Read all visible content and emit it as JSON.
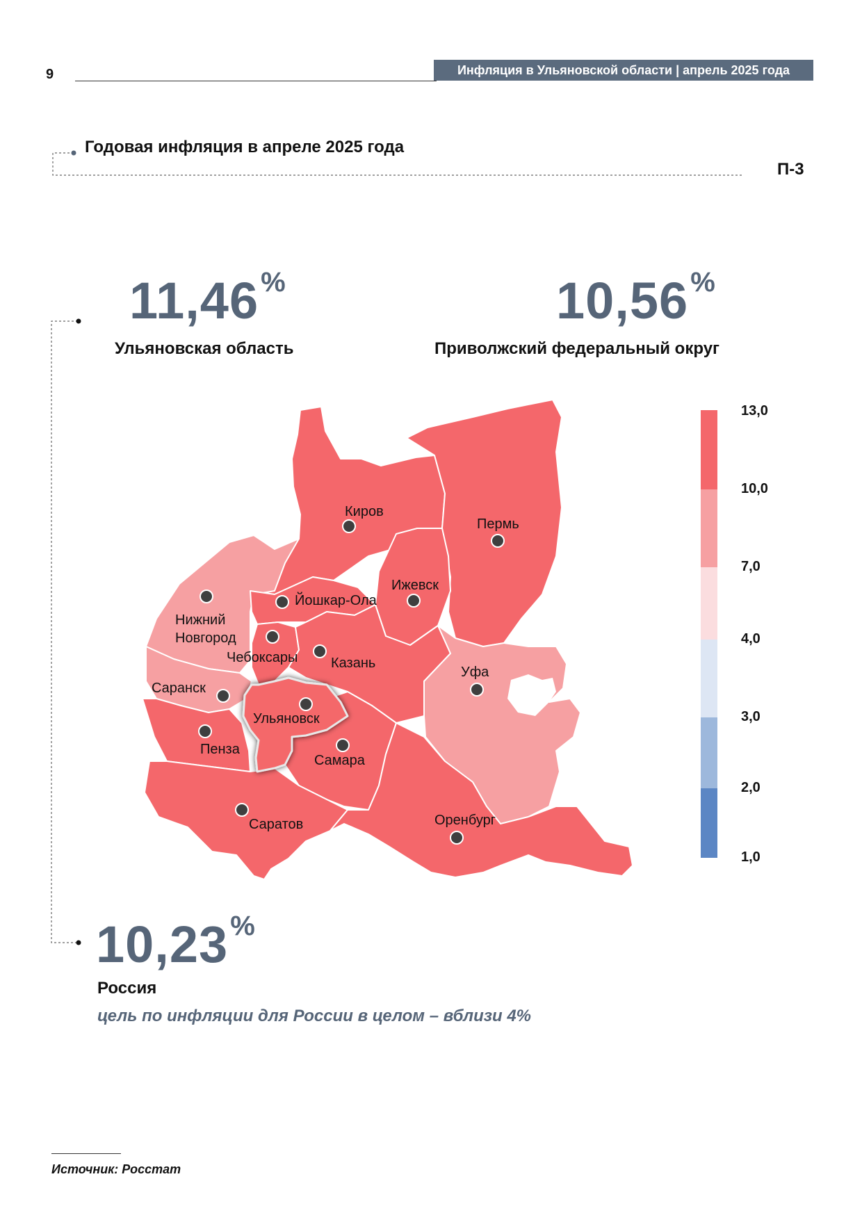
{
  "header": {
    "page_number": "9",
    "running_title": "Инфляция в Ульяновской области | апрель 2025 года"
  },
  "section": {
    "title": "Годовая инфляция в апреле 2025 года",
    "code": "П-3"
  },
  "indicators": {
    "ulyanovsk": {
      "value": "11,46",
      "unit": "%",
      "label": "Ульяновская область"
    },
    "pfo": {
      "value": "10,56",
      "unit": "%",
      "label": "Приволжский федеральный округ"
    },
    "russia": {
      "value": "10,23",
      "unit": "%",
      "label": "Россия",
      "note": "цель по инфляции для России в целом – вблизи 4%"
    }
  },
  "legend": {
    "ticks": [
      "13,0",
      "10,0",
      "7,0",
      "4,0",
      "3,0",
      "2,0",
      "1,0"
    ],
    "colors": [
      "#f4676b",
      "#f6a0a2",
      "#fbdddf",
      "#dde6f4",
      "#9db8dc",
      "#5b86c4"
    ]
  },
  "map": {
    "colors": {
      "high": "#f4676b",
      "mid": "#f6a0a2",
      "border": "#ffffff"
    },
    "cities": [
      {
        "name": "Киров",
        "class": "high"
      },
      {
        "name": "Пермь",
        "class": "high"
      },
      {
        "name": "Ижевск",
        "class": "high"
      },
      {
        "name": "Йошкар-Ола",
        "class": "high"
      },
      {
        "name": "Нижний Новгород",
        "class": "mid"
      },
      {
        "name": "Чебоксары",
        "class": "high"
      },
      {
        "name": "Казань",
        "class": "high"
      },
      {
        "name": "Уфа",
        "class": "mid"
      },
      {
        "name": "Саранск",
        "class": "mid"
      },
      {
        "name": "Ульяновск",
        "class": "high"
      },
      {
        "name": "Пенза",
        "class": "high"
      },
      {
        "name": "Самара",
        "class": "high"
      },
      {
        "name": "Саратов",
        "class": "high"
      },
      {
        "name": "Оренбург",
        "class": "high"
      }
    ]
  },
  "footer": {
    "source": "Источник: Росстат"
  }
}
